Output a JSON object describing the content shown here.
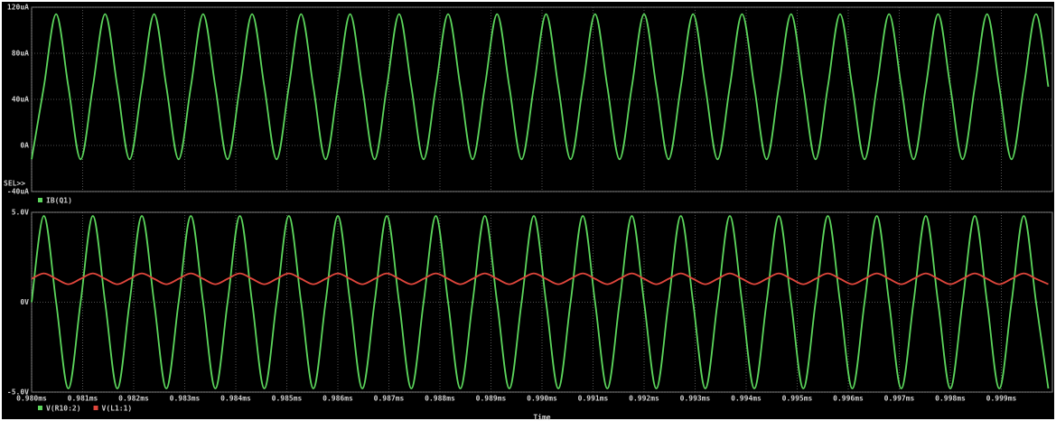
{
  "chart_data": [
    {
      "type": "line",
      "annotations": [
        "SEL>>"
      ],
      "x": [
        0.98,
        0.98024,
        0.98048,
        0.98072,
        0.98096,
        0.9812,
        0.98144,
        0.98168,
        0.98192,
        0.98216,
        0.9824,
        0.98264,
        0.98288,
        0.98312,
        0.98336,
        0.9836,
        0.98384,
        0.98408,
        0.98432,
        0.98456,
        0.9848,
        0.98504,
        0.98528,
        0.98552,
        0.98576,
        0.986,
        0.98624,
        0.98648,
        0.98672,
        0.98696,
        0.9872,
        0.98744,
        0.98768,
        0.98792,
        0.98816,
        0.9884,
        0.98864,
        0.98888,
        0.98912,
        0.98936,
        0.9896,
        0.98984,
        0.99008,
        0.99032,
        0.99056,
        0.9908,
        0.99104,
        0.99128,
        0.99152,
        0.99176,
        0.992,
        0.99224,
        0.99248,
        0.99272,
        0.99296,
        0.9932,
        0.99344,
        0.99368,
        0.99392,
        0.99416,
        0.9944,
        0.99464,
        0.99488,
        0.99512,
        0.99536,
        0.9956,
        0.99584,
        0.99608,
        0.99632,
        0.99656,
        0.9968,
        0.99704,
        0.99728,
        0.99752,
        0.99776,
        0.998,
        0.99824,
        0.99848,
        0.99872,
        0.99896,
        0.9992,
        0.99944,
        0.99968,
        0.99992
      ],
      "series": [
        {
          "name": "IB(Q1)",
          "color": "#5cd65c",
          "values": [
            -12,
            51,
            114,
            51,
            -12,
            51,
            114,
            51,
            -12,
            51,
            114,
            51,
            -12,
            51,
            114,
            51,
            -12,
            51,
            114,
            51,
            -12,
            51,
            114,
            51,
            -12,
            51,
            114,
            51,
            -12,
            51,
            114,
            51,
            -12,
            51,
            114,
            51,
            -12,
            51,
            114,
            51,
            -12,
            51,
            114,
            51,
            -12,
            51,
            114,
            51,
            -12,
            51,
            114,
            51,
            -12,
            51,
            114,
            51,
            -12,
            51,
            114,
            51,
            -12,
            51,
            114,
            51,
            -12,
            51,
            114,
            51,
            -12,
            51,
            114,
            51,
            -12,
            51,
            114,
            51,
            -12,
            51,
            114,
            51,
            -12,
            51,
            114,
            51
          ]
        }
      ],
      "xlim": [
        0.98,
        1.0
      ],
      "ylim": [
        -40,
        120
      ],
      "yticks": [
        {
          "value": 120,
          "label": "120uA"
        },
        {
          "value": 80,
          "label": "80uA"
        },
        {
          "value": 40,
          "label": "40uA"
        },
        {
          "value": 0,
          "label": "0A"
        },
        {
          "value": -40,
          "label": "-40uA"
        }
      ],
      "grid": true
    },
    {
      "type": "line",
      "x_label": "Time",
      "x": [
        0.98,
        0.98024,
        0.98048,
        0.98072,
        0.98096,
        0.9812,
        0.98144,
        0.98168,
        0.98192,
        0.98216,
        0.9824,
        0.98264,
        0.98288,
        0.98312,
        0.98336,
        0.9836,
        0.98384,
        0.98408,
        0.98432,
        0.98456,
        0.9848,
        0.98504,
        0.98528,
        0.98552,
        0.98576,
        0.986,
        0.98624,
        0.98648,
        0.98672,
        0.98696,
        0.9872,
        0.98744,
        0.98768,
        0.98792,
        0.98816,
        0.9884,
        0.98864,
        0.98888,
        0.98912,
        0.98936,
        0.9896,
        0.98984,
        0.99008,
        0.99032,
        0.99056,
        0.9908,
        0.99104,
        0.99128,
        0.99152,
        0.99176,
        0.992,
        0.99224,
        0.99248,
        0.99272,
        0.99296,
        0.9932,
        0.99344,
        0.99368,
        0.99392,
        0.99416,
        0.9944,
        0.99464,
        0.99488,
        0.99512,
        0.99536,
        0.9956,
        0.99584,
        0.99608,
        0.99632,
        0.99656,
        0.9968,
        0.99704,
        0.99728,
        0.99752,
        0.99776,
        0.998,
        0.99824,
        0.99848,
        0.99872,
        0.99896,
        0.9992,
        0.99944,
        0.99968,
        0.99992
      ],
      "series": [
        {
          "name": "V(R10:2)",
          "color": "#5cd65c",
          "values": [
            0,
            4.8,
            0,
            -4.8,
            0,
            4.8,
            0,
            -4.8,
            0,
            4.8,
            0,
            -4.8,
            0,
            4.8,
            0,
            -4.8,
            0,
            4.8,
            0,
            -4.8,
            0,
            4.8,
            0,
            -4.8,
            0,
            4.8,
            0,
            -4.8,
            0,
            4.8,
            0,
            -4.8,
            0,
            4.8,
            0,
            -4.8,
            0,
            4.8,
            0,
            -4.8,
            0,
            4.8,
            0,
            -4.8,
            0,
            4.8,
            0,
            -4.8,
            0,
            4.8,
            0,
            -4.8,
            0,
            4.8,
            0,
            -4.8,
            0,
            4.8,
            0,
            -4.8,
            0,
            4.8,
            0,
            -4.8,
            0,
            4.8,
            0,
            -4.8,
            0,
            4.8,
            0,
            -4.8,
            0,
            4.8,
            0,
            -4.8,
            0,
            4.8,
            0,
            -4.8,
            0,
            4.8,
            0,
            -4.8
          ]
        },
        {
          "name": "V(L1:1)",
          "color": "#e0463c",
          "values": [
            1.3,
            1.6,
            1.3,
            1.0,
            1.3,
            1.6,
            1.3,
            1.0,
            1.3,
            1.6,
            1.3,
            1.0,
            1.3,
            1.6,
            1.3,
            1.0,
            1.3,
            1.6,
            1.3,
            1.0,
            1.3,
            1.6,
            1.3,
            1.0,
            1.3,
            1.6,
            1.3,
            1.0,
            1.3,
            1.6,
            1.3,
            1.0,
            1.3,
            1.6,
            1.3,
            1.0,
            1.3,
            1.6,
            1.3,
            1.0,
            1.3,
            1.6,
            1.3,
            1.0,
            1.3,
            1.6,
            1.3,
            1.0,
            1.3,
            1.6,
            1.3,
            1.0,
            1.3,
            1.6,
            1.3,
            1.0,
            1.3,
            1.6,
            1.3,
            1.0,
            1.3,
            1.6,
            1.3,
            1.0,
            1.3,
            1.6,
            1.3,
            1.0,
            1.3,
            1.6,
            1.3,
            1.0,
            1.3,
            1.6,
            1.3,
            1.0,
            1.3,
            1.6,
            1.3,
            1.0,
            1.3,
            1.6,
            1.3,
            1.0
          ]
        }
      ],
      "xlim": [
        0.98,
        1.0
      ],
      "xticks": [
        {
          "value": 0.98,
          "label": "0.980ms"
        },
        {
          "value": 0.981,
          "label": "0.981ms"
        },
        {
          "value": 0.982,
          "label": "0.982ms"
        },
        {
          "value": 0.983,
          "label": "0.983ms"
        },
        {
          "value": 0.984,
          "label": "0.984ms"
        },
        {
          "value": 0.985,
          "label": "0.985ms"
        },
        {
          "value": 0.986,
          "label": "0.986ms"
        },
        {
          "value": 0.987,
          "label": "0.987ms"
        },
        {
          "value": 0.988,
          "label": "0.988ms"
        },
        {
          "value": 0.989,
          "label": "0.989ms"
        },
        {
          "value": 0.99,
          "label": "0.990ms"
        },
        {
          "value": 0.991,
          "label": "0.991ms"
        },
        {
          "value": 0.992,
          "label": "0.992ms"
        },
        {
          "value": 0.993,
          "label": "0.993ms"
        },
        {
          "value": 0.994,
          "label": "0.994ms"
        },
        {
          "value": 0.995,
          "label": "0.995ms"
        },
        {
          "value": 0.996,
          "label": "0.996ms"
        },
        {
          "value": 0.997,
          "label": "0.997ms"
        },
        {
          "value": 0.998,
          "label": "0.998ms"
        },
        {
          "value": 0.999,
          "label": "0.999ms"
        }
      ],
      "ylim": [
        -5,
        5
      ],
      "yticks": [
        {
          "value": 5,
          "label": "5.0V"
        },
        {
          "value": 0,
          "label": "0V"
        },
        {
          "value": -5,
          "label": "-5.0V"
        }
      ],
      "grid": true
    }
  ]
}
